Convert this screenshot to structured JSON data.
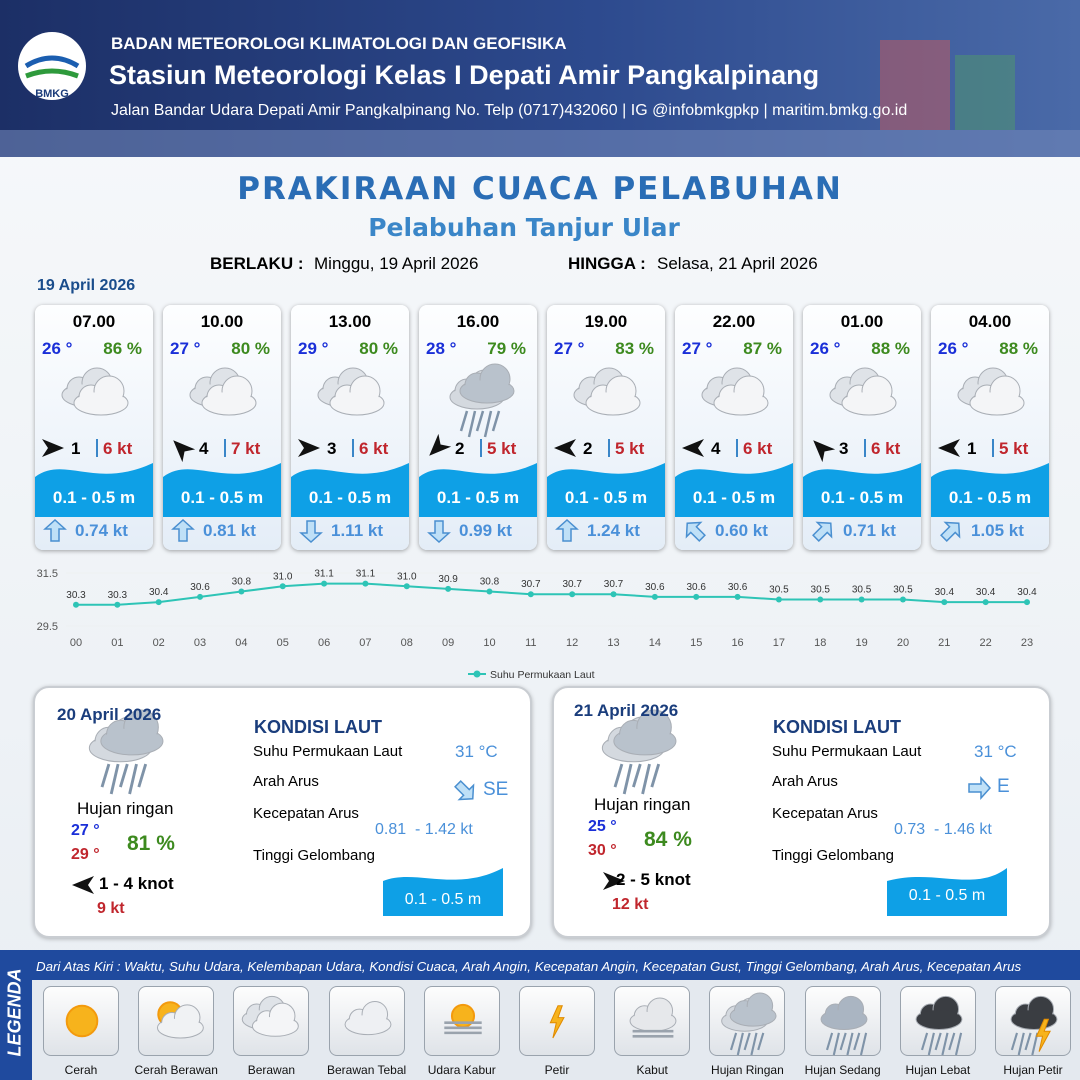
{
  "header": {
    "logo": "BMKG",
    "agency": "BADAN METEOROLOGI KLIMATOLOGI DAN GEOFISIKA",
    "station": "Stasiun Meteorologi Kelas I Depati Amir Pangkalpinang",
    "address": "Jalan Bandar Udara Depati Amir Pangkalpinang No. Telp (0717)432060 | IG @infobmkgpkp | maritim.bmkg.go.id"
  },
  "title": "PRAKIRAAN CUACA PELABUHAN",
  "subtitle": "Pelabuhan Tanjur Ular",
  "validity": {
    "from_label": "BERLAKU :",
    "from": "Minggu, 19 April 2026",
    "to_label": "HINGGA :",
    "to": "Selasa, 21 April 2026"
  },
  "day1": {
    "date": "19 April 2026",
    "cards": [
      {
        "time": "07.00",
        "temp": "26 °",
        "humidity": "86 %",
        "wind": "1",
        "gust": "6 kt",
        "wave": "0.1 - 0.5 m",
        "current": "0.74 kt"
      },
      {
        "time": "10.00",
        "temp": "27 °",
        "humidity": "80 %",
        "wind": "4",
        "gust": "7 kt",
        "wave": "0.1 - 0.5 m",
        "current": "0.81 kt"
      },
      {
        "time": "13.00",
        "temp": "29 °",
        "humidity": "80 %",
        "wind": "3",
        "gust": "6 kt",
        "wave": "0.1 - 0.5 m",
        "current": "1.11 kt"
      },
      {
        "time": "16.00",
        "temp": "28 °",
        "humidity": "79 %",
        "wind": "2",
        "gust": "5 kt",
        "wave": "0.1 - 0.5 m",
        "current": "0.99 kt"
      },
      {
        "time": "19.00",
        "temp": "27 °",
        "humidity": "83 %",
        "wind": "2",
        "gust": "5 kt",
        "wave": "0.1 - 0.5 m",
        "current": "1.24 kt"
      },
      {
        "time": "22.00",
        "temp": "27 °",
        "humidity": "87 %",
        "wind": "4",
        "gust": "6 kt",
        "wave": "0.1 - 0.5 m",
        "current": "0.60 kt"
      },
      {
        "time": "01.00",
        "temp": "26 °",
        "humidity": "88 %",
        "wind": "3",
        "gust": "6 kt",
        "wave": "0.1 - 0.5 m",
        "current": "0.71 kt"
      },
      {
        "time": "04.00",
        "temp": "26 °",
        "humidity": "88 %",
        "wind": "1",
        "gust": "5 kt",
        "wave": "0.1 - 0.5 m",
        "current": "1.05 kt"
      }
    ]
  },
  "chart_data": {
    "type": "line",
    "categories": [
      "00",
      "01",
      "02",
      "03",
      "04",
      "05",
      "06",
      "07",
      "08",
      "09",
      "10",
      "11",
      "12",
      "13",
      "14",
      "15",
      "16",
      "17",
      "18",
      "19",
      "20",
      "21",
      "22",
      "23"
    ],
    "series": [
      {
        "name": "Suhu Permukaan Laut",
        "color": "#2ec4b6",
        "values": [
          30.3,
          30.3,
          30.4,
          30.6,
          30.8,
          31.0,
          31.1,
          31.1,
          31.0,
          30.9,
          30.8,
          30.7,
          30.7,
          30.7,
          30.6,
          30.6,
          30.6,
          30.5,
          30.5,
          30.5,
          30.5,
          30.4,
          30.4,
          30.4
        ],
        "value_labels": [
          "30.3",
          "30.3",
          "30.4",
          "30.6",
          "30.8",
          "31.0",
          "31.1",
          "31.1",
          "31.0",
          "30.9",
          "30.8",
          "30.7",
          "30.7",
          "30.7",
          "30.6",
          "30.6",
          "30.6",
          "30.5",
          "30.5",
          "30.5",
          "30.5",
          "30.4",
          "30.4",
          "30.4"
        ]
      }
    ],
    "ylim": [
      29.5,
      31.5
    ],
    "yticks": [
      29.5,
      31.5
    ]
  },
  "days": [
    {
      "date": "20 April 2026",
      "condition": "Hujan ringan",
      "temp_min": "27 °",
      "temp_max": "29 °",
      "humidity": "81 %",
      "wind": "1 - 4 knot",
      "gust": "9 kt",
      "sea_title": "KONDISI LAUT",
      "sst_label": "Suhu Permukaan Laut",
      "sst": "31 °C",
      "current_dir_label": "Arah Arus",
      "current_dir": "SE",
      "current_speed_label": "Kecepatan Arus",
      "current_speed": "0.81  - 1.42 kt",
      "wave_label": "Tinggi Gelombang",
      "wave": "0.1 - 0.5 m"
    },
    {
      "date": "21 April 2026",
      "condition": "Hujan ringan",
      "temp_min": "25 °",
      "temp_max": "30 °",
      "humidity": "84 %",
      "wind": "2 - 5 knot",
      "gust": "12 kt",
      "sea_title": "KONDISI LAUT",
      "sst_label": "Suhu Permukaan Laut",
      "sst": "31 °C",
      "current_dir_label": "Arah Arus",
      "current_dir": "E",
      "current_speed_label": "Kecepatan Arus",
      "current_speed": "0.73  - 1.46 kt",
      "wave_label": "Tinggi Gelombang",
      "wave": "0.1 - 0.5 m"
    }
  ],
  "legend": {
    "title": "LEGENDA",
    "description": "Dari Atas Kiri : Waktu, Suhu Udara, Kelembapan Udara, Kondisi Cuaca, Arah Angin, Kecepatan Angin, Kecepatan Gust, Tinggi Gelombang, Arah Arus, Kecepatan Arus",
    "items": [
      "Cerah",
      "Cerah Berawan",
      "Berawan",
      "Berawan Tebal",
      "Udara Kabur",
      "Petir",
      "Kabut",
      "Hujan Ringan",
      "Hujan Sedang",
      "Hujan Lebat",
      "Hujan Petir"
    ]
  }
}
